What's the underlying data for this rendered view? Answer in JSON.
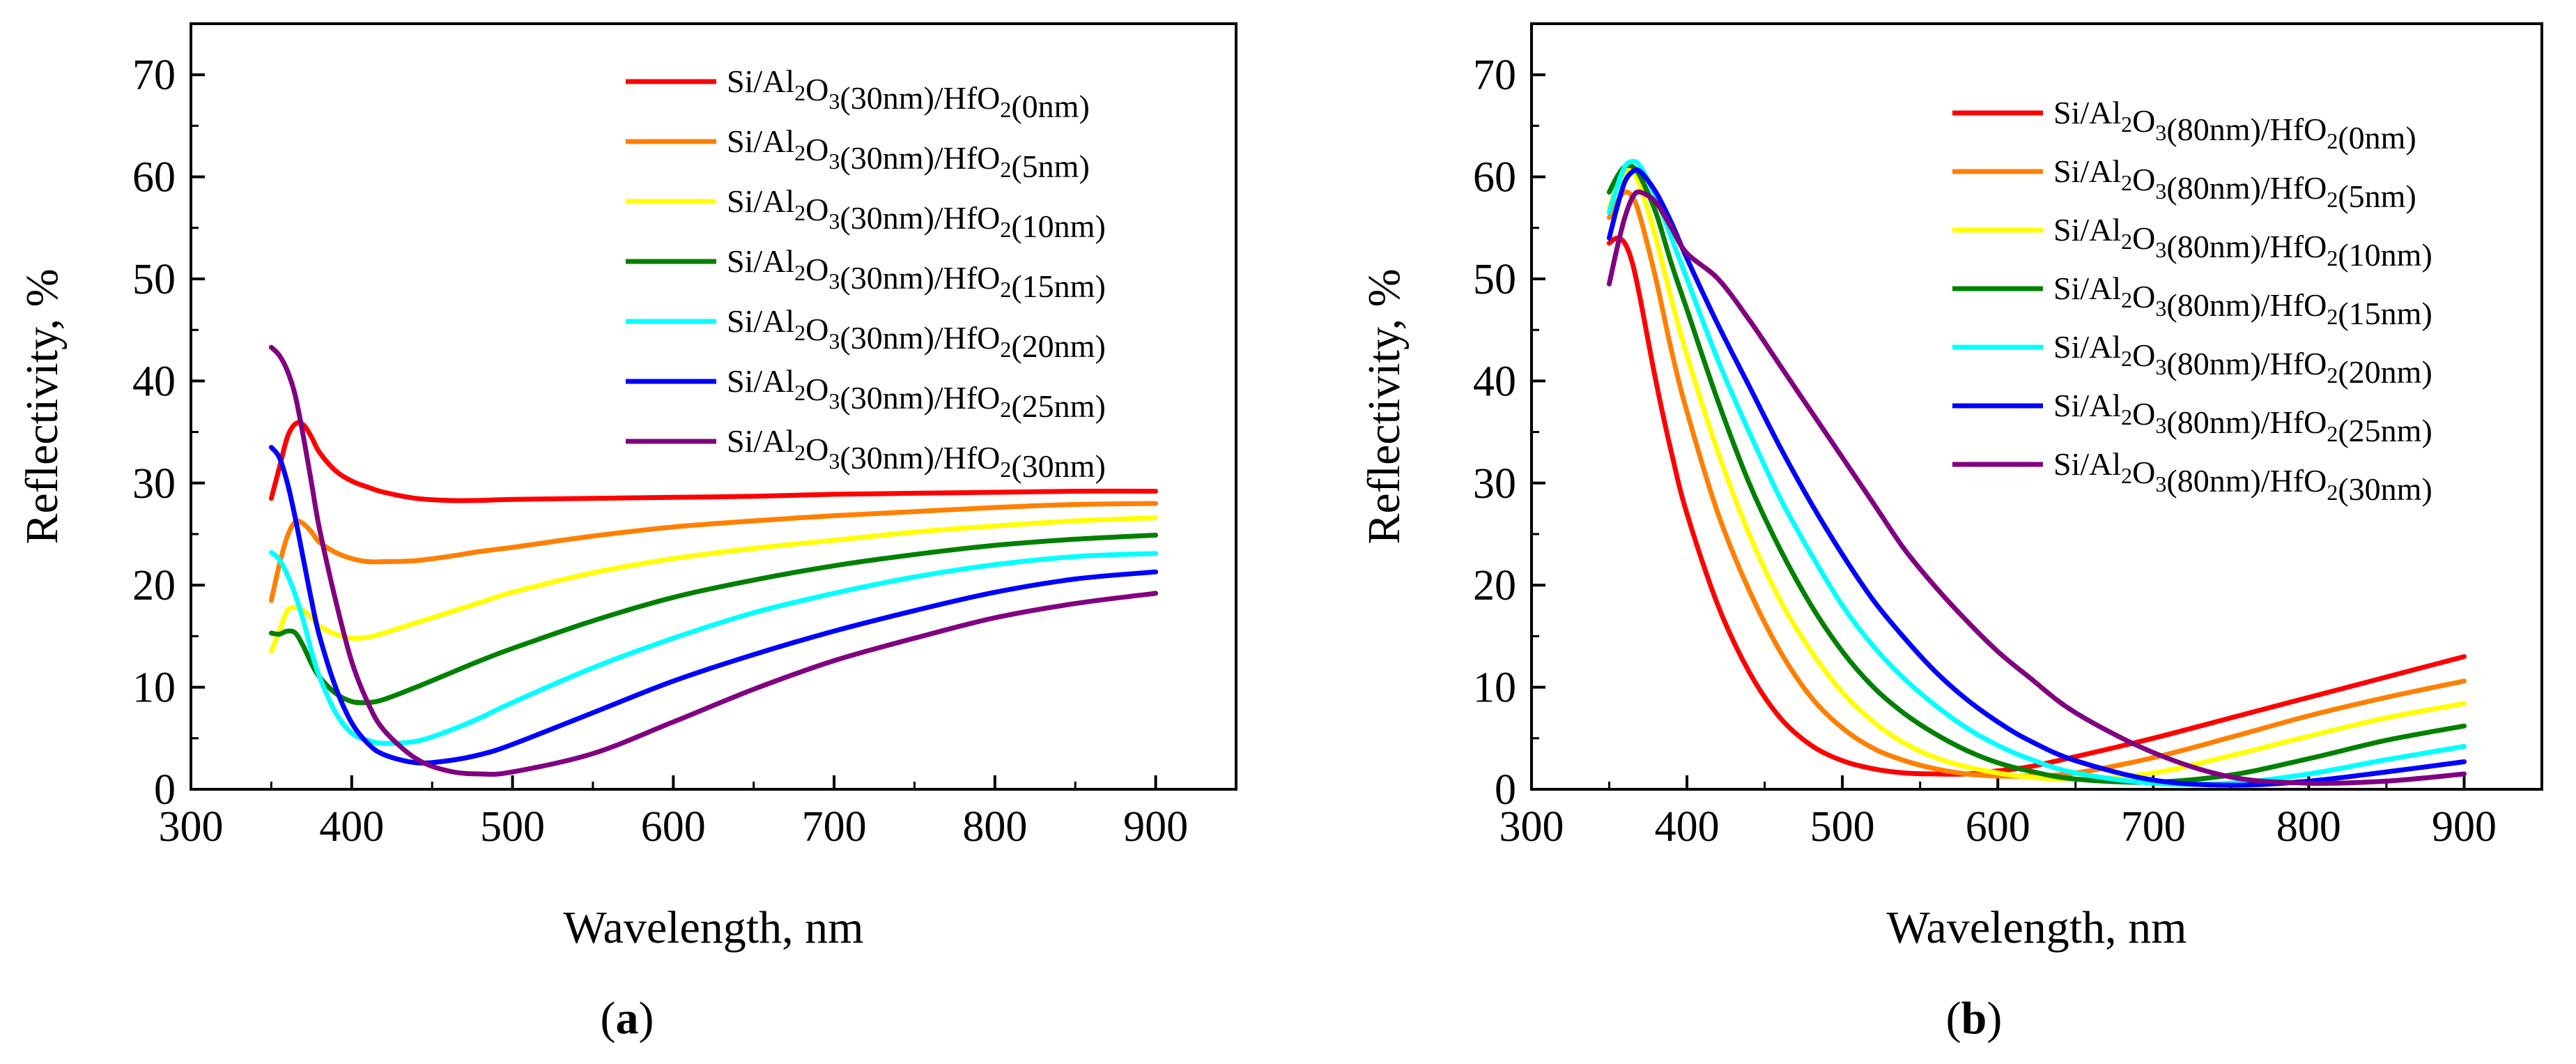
{
  "chart_data": [
    {
      "type": "line",
      "panel_label": "(a)",
      "panel_letter": "a",
      "xlabel": "Wavelength, nm",
      "ylabel": "Reflectivity, %",
      "xlim": [
        300,
        950
      ],
      "ylim": [
        0,
        75
      ],
      "xticks": [
        300,
        400,
        500,
        600,
        700,
        800,
        900
      ],
      "yticks": [
        0,
        10,
        20,
        30,
        40,
        50,
        60,
        70
      ],
      "legend_position": "top-right",
      "series": [
        {
          "name": "Si/Al2O3(30nm)/HfO2(0nm)",
          "color": "#ff0000",
          "x": [
            350,
            355,
            360,
            365,
            370,
            375,
            380,
            390,
            400,
            410,
            420,
            440,
            460,
            480,
            500,
            550,
            600,
            650,
            700,
            750,
            800,
            850,
            900
          ],
          "y": [
            28.5,
            31.5,
            34.5,
            35.8,
            35.7,
            34.5,
            33,
            31.2,
            30.2,
            29.6,
            29.1,
            28.5,
            28.3,
            28.3,
            28.4,
            28.5,
            28.6,
            28.7,
            28.9,
            29,
            29.1,
            29.2,
            29.2
          ]
        },
        {
          "name": "Si/Al2O3(30nm)/HfO2(5nm)",
          "color": "#ff8000",
          "x": [
            350,
            355,
            360,
            365,
            370,
            375,
            380,
            390,
            400,
            410,
            420,
            440,
            460,
            480,
            500,
            550,
            600,
            650,
            700,
            750,
            800,
            850,
            900
          ],
          "y": [
            18.5,
            22,
            24.8,
            26.2,
            26,
            25.2,
            24.2,
            23.2,
            22.6,
            22.3,
            22.3,
            22.4,
            22.8,
            23.3,
            23.7,
            24.8,
            25.7,
            26.3,
            26.8,
            27.2,
            27.6,
            27.9,
            28
          ]
        },
        {
          "name": "Si/Al2O3(30nm)/HfO2(10nm)",
          "color": "#ffff00",
          "x": [
            350,
            355,
            360,
            365,
            370,
            375,
            380,
            390,
            400,
            410,
            420,
            440,
            460,
            480,
            500,
            550,
            600,
            650,
            700,
            750,
            800,
            850,
            900
          ],
          "y": [
            13.5,
            15.5,
            17.5,
            17.8,
            17.5,
            16.8,
            16,
            15.2,
            14.8,
            14.9,
            15.3,
            16.3,
            17.3,
            18.3,
            19.3,
            21.2,
            22.6,
            23.6,
            24.4,
            25.2,
            25.8,
            26.3,
            26.6
          ]
        },
        {
          "name": "Si/Al2O3(30nm)/HfO2(15nm)",
          "color": "#008000",
          "x": [
            350,
            355,
            360,
            365,
            370,
            375,
            380,
            390,
            400,
            410,
            420,
            440,
            460,
            480,
            500,
            550,
            600,
            650,
            700,
            750,
            800,
            850,
            900
          ],
          "y": [
            15.3,
            15.2,
            15.5,
            15.3,
            14,
            12.3,
            11,
            9.4,
            8.6,
            8.5,
            8.8,
            10,
            11.3,
            12.6,
            13.8,
            16.5,
            18.8,
            20.5,
            21.9,
            23,
            23.9,
            24.5,
            24.9
          ]
        },
        {
          "name": "Si/Al2O3(30nm)/HfO2(20nm)",
          "color": "#00ffff",
          "x": [
            350,
            355,
            360,
            365,
            370,
            375,
            380,
            390,
            400,
            410,
            420,
            440,
            460,
            480,
            500,
            550,
            600,
            650,
            700,
            750,
            800,
            850,
            900
          ],
          "y": [
            23.2,
            22.5,
            21,
            19,
            16.5,
            13.5,
            11,
            7.5,
            5.5,
            4.8,
            4.5,
            4.7,
            5.7,
            7,
            8.5,
            11.9,
            14.8,
            17.3,
            19.2,
            20.8,
            22,
            22.8,
            23.1
          ]
        },
        {
          "name": "Si/Al2O3(30nm)/HfO2(25nm)",
          "color": "#0000ff",
          "x": [
            350,
            355,
            360,
            365,
            370,
            375,
            380,
            390,
            400,
            410,
            420,
            440,
            460,
            480,
            500,
            550,
            600,
            650,
            700,
            750,
            800,
            850,
            900
          ],
          "y": [
            33.5,
            32.5,
            30,
            26.5,
            22.5,
            18.5,
            15,
            10,
            6.5,
            4.5,
            3.4,
            2.6,
            2.8,
            3.4,
            4.4,
            7.5,
            10.6,
            13.2,
            15.5,
            17.5,
            19.3,
            20.6,
            21.3
          ]
        },
        {
          "name": "Si/Al2O3(30nm)/HfO2(30nm)",
          "color": "#800080",
          "x": [
            350,
            355,
            360,
            365,
            370,
            375,
            380,
            390,
            400,
            410,
            420,
            440,
            460,
            480,
            500,
            550,
            600,
            650,
            700,
            750,
            800,
            850,
            900
          ],
          "y": [
            43.3,
            42.5,
            41,
            38.5,
            34.5,
            30,
            25.5,
            18.5,
            12.5,
            8.5,
            5.8,
            3,
            1.8,
            1.5,
            1.7,
            3.5,
            6.6,
            9.8,
            12.6,
            14.8,
            16.8,
            18.2,
            19.2
          ]
        }
      ]
    },
    {
      "type": "line",
      "panel_label": "(b)",
      "panel_letter": "b",
      "xlabel": "Wavelength, nm",
      "ylabel": "Reflectivity, %",
      "xlim": [
        300,
        950
      ],
      "ylim": [
        0,
        75
      ],
      "xticks": [
        300,
        400,
        500,
        600,
        700,
        800,
        900
      ],
      "yticks": [
        0,
        10,
        20,
        30,
        40,
        50,
        60,
        70
      ],
      "legend_position": "top-right",
      "series": [
        {
          "name": "Si/Al2O3(80nm)/HfO2(0nm)",
          "color": "#ff0000",
          "x": [
            350,
            355,
            360,
            365,
            370,
            380,
            390,
            400,
            420,
            440,
            460,
            480,
            500,
            520,
            540,
            560,
            580,
            600,
            620,
            650,
            700,
            750,
            800,
            850,
            900
          ],
          "y": [
            53.5,
            54,
            53.5,
            51.5,
            48,
            40,
            33,
            27,
            18,
            11.5,
            7,
            4.3,
            2.8,
            2,
            1.6,
            1.5,
            1.5,
            1.8,
            2.2,
            3.2,
            5,
            7,
            9,
            11,
            13
          ]
        },
        {
          "name": "Si/Al2O3(80nm)/HfO2(5nm)",
          "color": "#ff8000",
          "x": [
            350,
            355,
            360,
            365,
            370,
            380,
            390,
            400,
            420,
            440,
            460,
            480,
            500,
            520,
            540,
            560,
            580,
            600,
            620,
            650,
            700,
            750,
            800,
            850,
            900
          ],
          "y": [
            56,
            57.5,
            58.5,
            58,
            56,
            50,
            43,
            37,
            27,
            19.5,
            13.5,
            9,
            6,
            4,
            2.8,
            2,
            1.5,
            1.3,
            1.3,
            1.6,
            3.1,
            5.1,
            7.2,
            9,
            10.6
          ]
        },
        {
          "name": "Si/Al2O3(80nm)/HfO2(10nm)",
          "color": "#ffff00",
          "x": [
            350,
            355,
            360,
            365,
            370,
            380,
            390,
            400,
            420,
            440,
            460,
            480,
            500,
            520,
            540,
            560,
            580,
            600,
            620,
            650,
            700,
            750,
            800,
            850,
            900
          ],
          "y": [
            57,
            59,
            60.5,
            60.5,
            59,
            54,
            48,
            42.5,
            33,
            25,
            18.5,
            13.5,
            9.5,
            6.6,
            4.5,
            3.1,
            2.2,
            1.6,
            1.2,
            1,
            1.6,
            3.3,
            5.2,
            7,
            8.4
          ]
        },
        {
          "name": "Si/Al2O3(80nm)/HfO2(15nm)",
          "color": "#008000",
          "x": [
            350,
            355,
            360,
            365,
            370,
            380,
            390,
            400,
            420,
            440,
            460,
            480,
            500,
            520,
            540,
            560,
            580,
            600,
            620,
            650,
            700,
            750,
            800,
            850,
            900
          ],
          "y": [
            58.5,
            60,
            61,
            61,
            60,
            56.5,
            51.5,
            47,
            38,
            30,
            23.5,
            18,
            13.5,
            10,
            7.4,
            5.4,
            3.8,
            2.6,
            1.8,
            1,
            0.7,
            1.4,
            3,
            4.8,
            6.2
          ]
        },
        {
          "name": "Si/Al2O3(80nm)/HfO2(20nm)",
          "color": "#00ffff",
          "x": [
            350,
            355,
            360,
            365,
            370,
            380,
            390,
            400,
            420,
            440,
            460,
            480,
            500,
            520,
            540,
            560,
            580,
            600,
            620,
            650,
            700,
            750,
            800,
            850,
            900
          ],
          "y": [
            56.5,
            59,
            61,
            61.5,
            61,
            58,
            54,
            50,
            42,
            35,
            28.5,
            23,
            18,
            14,
            10.8,
            8.2,
            6,
            4.3,
            3,
            1.6,
            0.6,
            0.6,
            1.5,
            2.9,
            4.2
          ]
        },
        {
          "name": "Si/Al2O3(80nm)/HfO2(25nm)",
          "color": "#0000ff",
          "x": [
            350,
            355,
            360,
            365,
            370,
            380,
            390,
            400,
            420,
            440,
            460,
            480,
            500,
            520,
            540,
            560,
            580,
            600,
            620,
            650,
            700,
            750,
            800,
            850,
            900
          ],
          "y": [
            54,
            57,
            59.5,
            60.5,
            60.5,
            58.5,
            55.5,
            52,
            45.5,
            39.5,
            33.5,
            28,
            23,
            18.5,
            14.8,
            11.5,
            8.8,
            6.6,
            4.8,
            2.8,
            0.9,
            0.4,
            0.8,
            1.7,
            2.7
          ]
        },
        {
          "name": "Si/Al2O3(80nm)/HfO2(30nm)",
          "color": "#800080",
          "x": [
            350,
            355,
            360,
            365,
            370,
            380,
            390,
            400,
            420,
            440,
            460,
            480,
            500,
            520,
            540,
            560,
            580,
            600,
            620,
            650,
            700,
            750,
            800,
            850,
            900
          ],
          "y": [
            49.5,
            53,
            56,
            58,
            58.5,
            57.5,
            55,
            52.5,
            50,
            46,
            41.5,
            37,
            32.5,
            28,
            23.5,
            19.8,
            16.5,
            13.5,
            11,
            7.5,
            3.6,
            1.2,
            0.6,
            0.8,
            1.5
          ]
        }
      ]
    }
  ]
}
